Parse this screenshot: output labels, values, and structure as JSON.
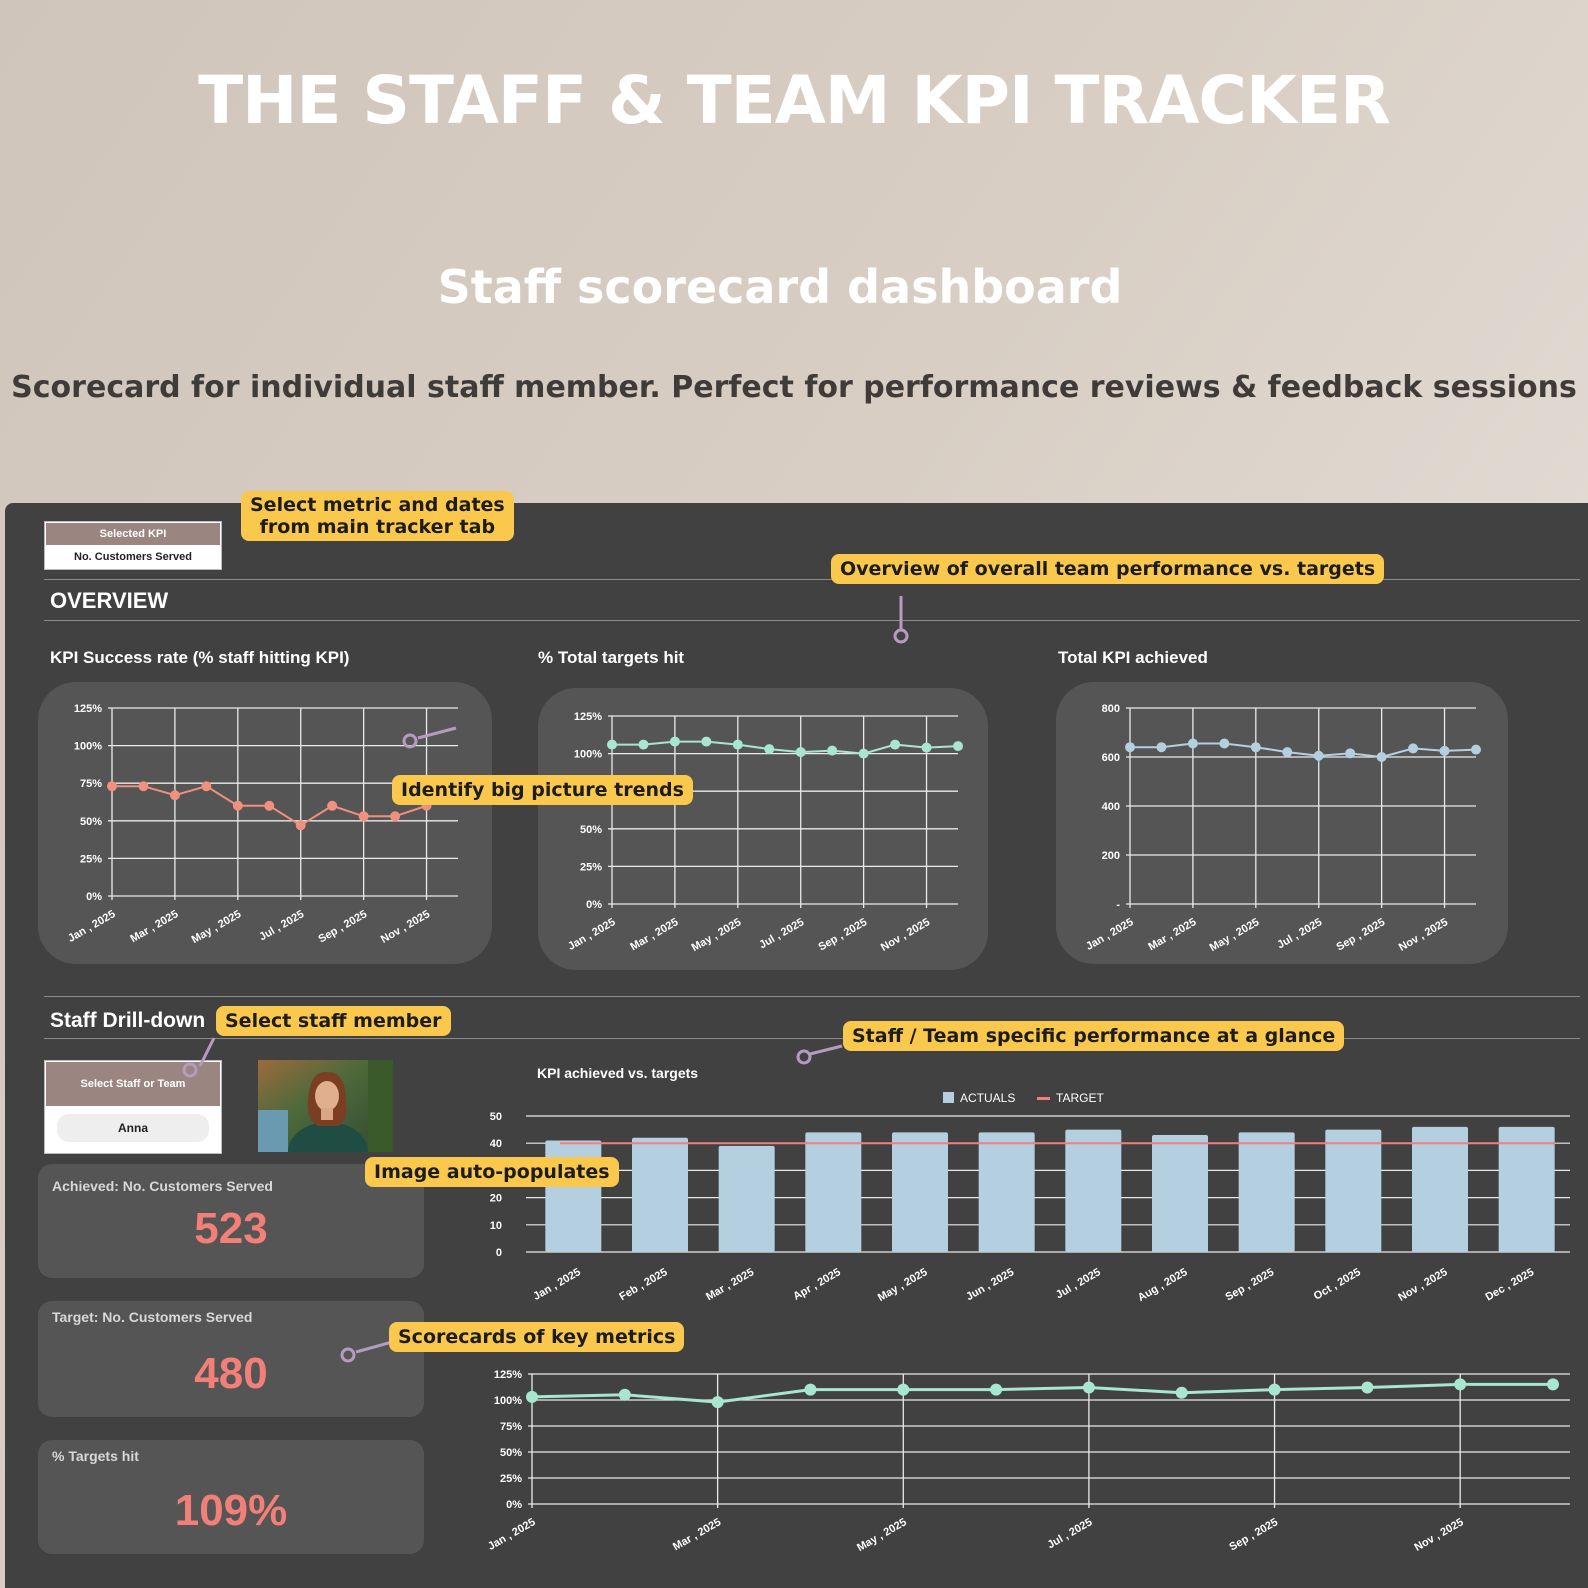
{
  "header": {
    "title": "THE STAFF & TEAM KPI TRACKER",
    "subtitle": "Staff scorecard dashboard",
    "tagline": "Scorecard for individual staff member. Perfect for performance reviews & feedback sessions"
  },
  "kpi_selector": {
    "header": "Selected KPI",
    "value": "No. Customers Served"
  },
  "overview": {
    "heading": "OVERVIEW"
  },
  "drilldown": {
    "heading": "Staff Drill-down",
    "selector_header": "Select Staff or Team",
    "selector_value": "Anna",
    "photo_label": "Staff photo"
  },
  "scorecards": [
    {
      "label": "Achieved: No. Customers Served",
      "value": "523"
    },
    {
      "label": "Target: No. Customers Served",
      "value": "480"
    },
    {
      "label": "% Targets hit",
      "value": "109%"
    }
  ],
  "callouts": {
    "select_metric_1": "Select metric and dates",
    "select_metric_2": "from main tracker tab",
    "overview": "Overview of overall team performance vs. targets",
    "trends": "Identify big picture trends",
    "select_staff": "Select staff member",
    "specific": "Staff / Team specific performance at a glance",
    "image": "Image auto-populates",
    "scorecards": "Scorecards of key metrics"
  },
  "colors": {
    "panel": "#414141",
    "card": "#555555",
    "accent": "#f27f78",
    "mint": "#a8e6cf",
    "blue": "#b4cfe0",
    "callout": "#f9c84d",
    "target": "#f08080"
  },
  "chart_data": [
    {
      "type": "line",
      "title": "KPI Success rate (% staff hitting KPI)",
      "x": [
        "Jan , 2025",
        "Feb , 2025",
        "Mar , 2025",
        "Apr , 2025",
        "May , 2025",
        "Jun , 2025",
        "Jul , 2025",
        "Aug , 2025",
        "Sep , 2025",
        "Oct , 2025",
        "Nov , 2025"
      ],
      "x_tick_labels": [
        "Jan , 2025",
        "Mar , 2025",
        "May , 2025",
        "Jul , 2025",
        "Sep , 2025",
        "Nov , 2025"
      ],
      "y_tick_labels": [
        "0%",
        "25%",
        "50%",
        "75%",
        "100%",
        "125%"
      ],
      "series": [
        {
          "values": [
            73,
            73,
            67,
            73,
            60,
            60,
            47,
            60,
            53,
            53,
            60
          ]
        }
      ],
      "ylim": [
        0,
        125
      ],
      "color": "#f0907e"
    },
    {
      "type": "line",
      "title": "% Total targets hit",
      "x": [
        "Jan , 2025",
        "Feb , 2025",
        "Mar , 2025",
        "Apr , 2025",
        "May , 2025",
        "Jun , 2025",
        "Jul , 2025",
        "Aug , 2025",
        "Sep , 2025",
        "Oct , 2025",
        "Nov , 2025",
        "Dec , 2025"
      ],
      "x_tick_labels": [
        "Jan , 2025",
        "Mar , 2025",
        "May , 2025",
        "Jul , 2025",
        "Sep , 2025",
        "Nov , 2025"
      ],
      "y_tick_labels": [
        "0%",
        "25%",
        "50%",
        "75%",
        "100%",
        "125%"
      ],
      "series": [
        {
          "values": [
            106,
            106,
            108,
            108,
            106,
            103,
            101,
            102,
            100,
            106,
            104,
            105
          ]
        }
      ],
      "ylim": [
        0,
        125
      ],
      "color": "#a8e6cf"
    },
    {
      "type": "line",
      "title": "Total KPI achieved",
      "x": [
        "Jan , 2025",
        "Feb , 2025",
        "Mar , 2025",
        "Apr , 2025",
        "May , 2025",
        "Jun , 2025",
        "Jul , 2025",
        "Aug , 2025",
        "Sep , 2025",
        "Oct , 2025",
        "Nov , 2025",
        "Dec , 2025"
      ],
      "x_tick_labels": [
        "Jan , 2025",
        "Mar , 2025",
        "May , 2025",
        "Jul , 2025",
        "Sep , 2025",
        "Nov , 2025"
      ],
      "y_tick_labels": [
        "-",
        "200",
        "400",
        "600",
        "800"
      ],
      "series": [
        {
          "values": [
            640,
            640,
            655,
            655,
            640,
            620,
            605,
            615,
            600,
            635,
            625,
            630
          ]
        }
      ],
      "ylim": [
        0,
        800
      ],
      "color": "#b4cfe0"
    },
    {
      "type": "bar",
      "title": "KPI achieved vs. targets",
      "categories": [
        "Jan , 2025",
        "Feb , 2025",
        "Mar , 2025",
        "Apr , 2025",
        "May , 2025",
        "Jun , 2025",
        "Jul , 2025",
        "Aug , 2025",
        "Sep , 2025",
        "Oct , 2025",
        "Nov , 2025",
        "Dec , 2025"
      ],
      "y_tick_labels": [
        "0",
        "10",
        "20",
        "30",
        "40",
        "50"
      ],
      "series": [
        {
          "name": "ACTUALS",
          "type": "bar",
          "values": [
            41,
            42,
            39,
            44,
            44,
            44,
            45,
            43,
            44,
            45,
            46,
            46
          ],
          "color": "#b4cfe0"
        },
        {
          "name": "TARGET",
          "type": "line",
          "values": [
            40,
            40,
            40,
            40,
            40,
            40,
            40,
            40,
            40,
            40,
            40,
            40
          ],
          "color": "#f08080"
        }
      ],
      "ylim": [
        0,
        50
      ],
      "legend": "top-center"
    },
    {
      "type": "line",
      "x": [
        "Jan , 2025",
        "Feb , 2025",
        "Mar , 2025",
        "Apr , 2025",
        "May , 2025",
        "Jun , 2025",
        "Jul , 2025",
        "Aug , 2025",
        "Sep , 2025",
        "Oct , 2025",
        "Nov , 2025",
        "Dec , 2025"
      ],
      "x_tick_labels": [
        "Jan , 2025",
        "Mar , 2025",
        "May , 2025",
        "Jul , 2025",
        "Sep , 2025",
        "Nov , 2025"
      ],
      "y_tick_labels": [
        "0%",
        "25%",
        "50%",
        "75%",
        "100%",
        "125%"
      ],
      "series": [
        {
          "values": [
            103,
            105,
            98,
            110,
            110,
            110,
            112,
            107,
            110,
            112,
            115,
            115
          ]
        }
      ],
      "ylim": [
        0,
        125
      ],
      "color": "#a8e6cf"
    }
  ]
}
